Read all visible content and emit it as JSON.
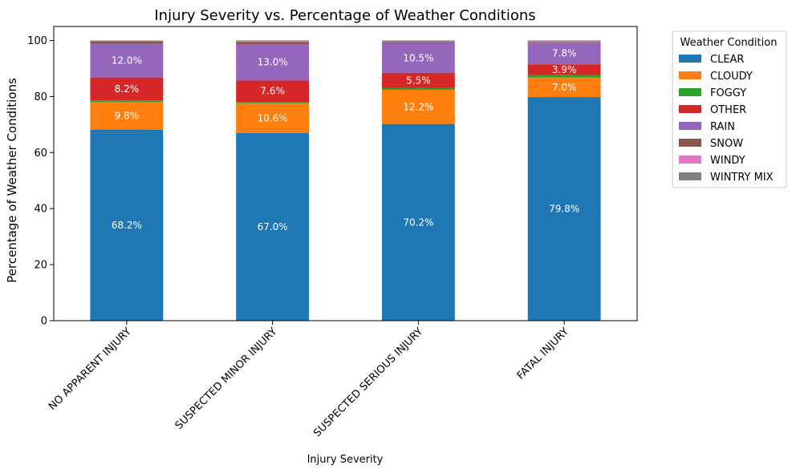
{
  "chart_data": {
    "type": "bar",
    "stacked": true,
    "title": "Injury Severity vs. Percentage of Weather Conditions",
    "xlabel": "Injury Severity",
    "ylabel": "Percentage of Weather Conditions",
    "ylim": [
      0,
      105
    ],
    "yticks": [
      0,
      20,
      40,
      60,
      80,
      100
    ],
    "grid": false,
    "legend": {
      "title": "Weather Condition",
      "placement": "outside-right"
    },
    "categories": [
      "NO APPARENT INJURY",
      "SUSPECTED MINOR INJURY",
      "SUSPECTED SERIOUS INJURY",
      "FATAL INJURY"
    ],
    "series": [
      {
        "name": "CLEAR",
        "color": "#1f77b4",
        "values": [
          68.2,
          67.0,
          70.2,
          79.8
        ],
        "labels": [
          "68.2%",
          "67.0%",
          "70.2%",
          "79.8%"
        ]
      },
      {
        "name": "CLOUDY",
        "color": "#ff7f0e",
        "values": [
          9.8,
          10.6,
          12.2,
          7.0
        ],
        "labels": [
          "9.8%",
          "10.6%",
          "12.2%",
          "7.0%"
        ]
      },
      {
        "name": "FOGGY",
        "color": "#2ca02c",
        "values": [
          0.6,
          0.5,
          0.6,
          0.8
        ],
        "labels": [
          "",
          "",
          "",
          ""
        ]
      },
      {
        "name": "OTHER",
        "color": "#d62728",
        "values": [
          8.2,
          7.6,
          5.5,
          3.9
        ],
        "labels": [
          "8.2%",
          "7.6%",
          "5.5%",
          "3.9%"
        ]
      },
      {
        "name": "RAIN",
        "color": "#9467bd",
        "values": [
          12.0,
          13.0,
          10.5,
          7.8
        ],
        "labels": [
          "12.0%",
          "13.0%",
          "10.5%",
          "7.8%"
        ]
      },
      {
        "name": "SNOW",
        "color": "#8c564b",
        "values": [
          0.9,
          0.8,
          0.4,
          0.2
        ],
        "labels": [
          "",
          "",
          "",
          ""
        ]
      },
      {
        "name": "WINDY",
        "color": "#e377c2",
        "values": [
          0.1,
          0.2,
          0.1,
          0.1
        ],
        "labels": [
          "",
          "",
          "",
          ""
        ]
      },
      {
        "name": "WINTRY MIX",
        "color": "#7f7f7f",
        "values": [
          0.2,
          0.3,
          0.5,
          0.4
        ],
        "labels": [
          "",
          "",
          "",
          ""
        ]
      }
    ]
  }
}
